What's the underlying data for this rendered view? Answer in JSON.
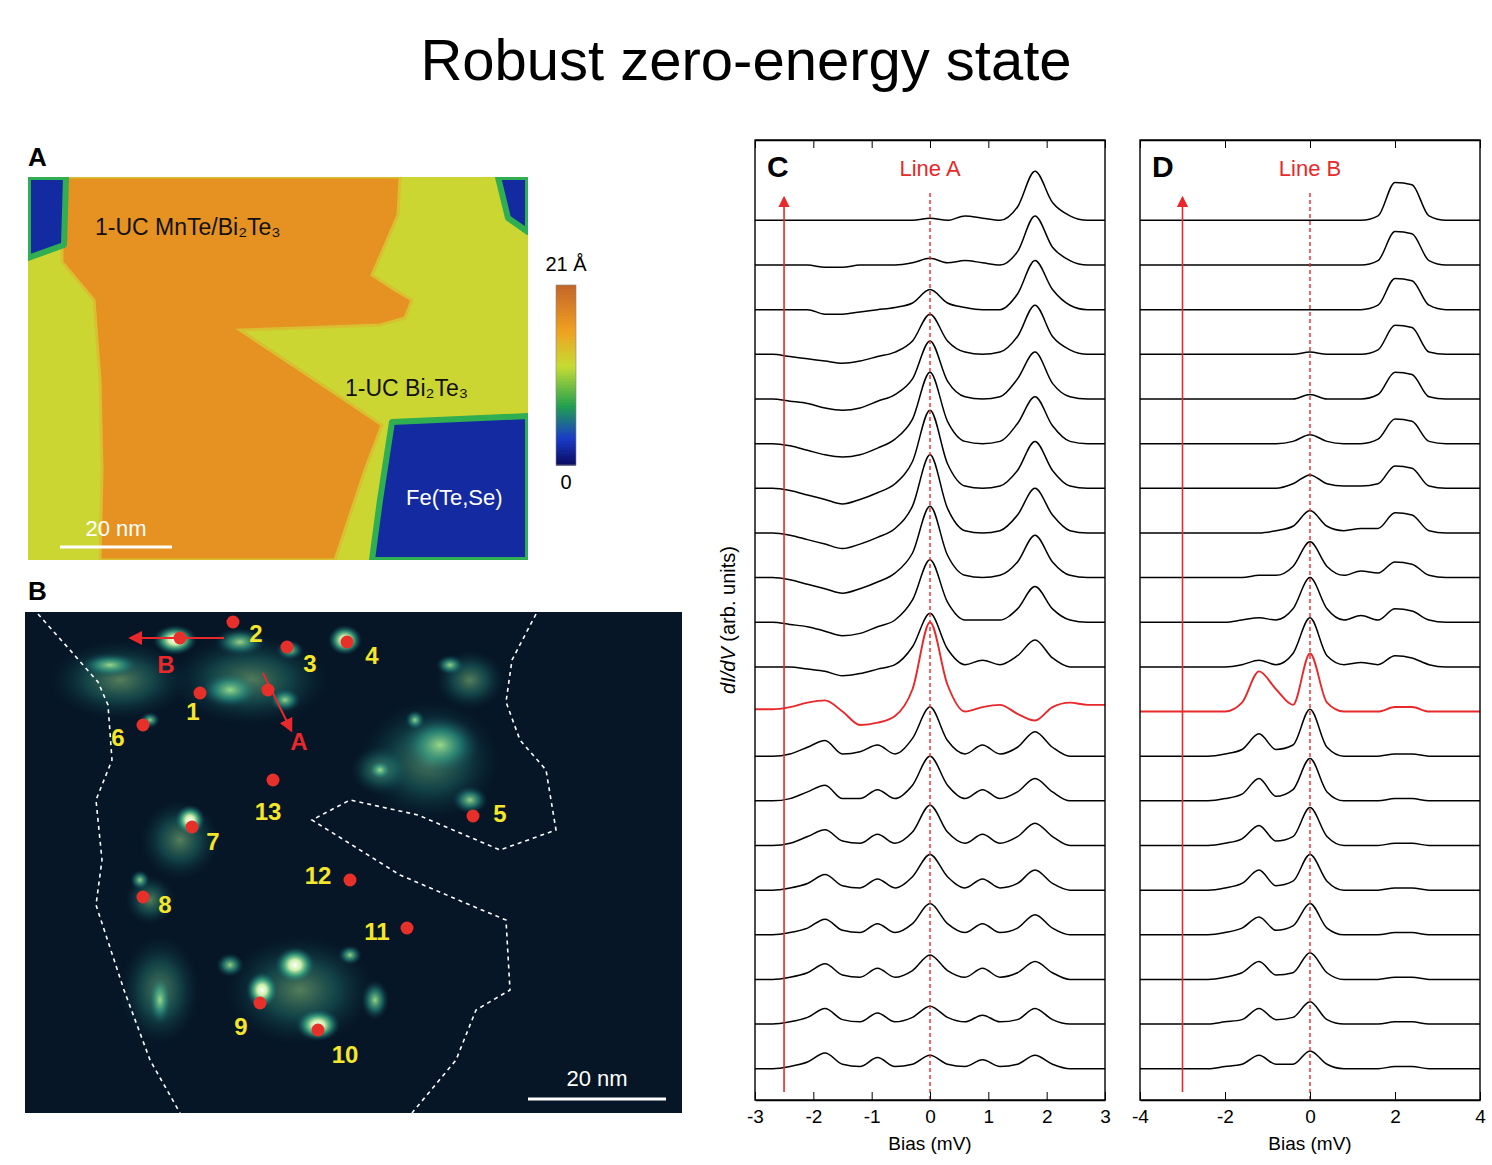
{
  "page_title": "Robust zero-energy state",
  "images": [
    {
      "panel": "A",
      "regions": [
        {
          "label": "1-UC MnTe/Bi₂Te₃",
          "height": 17
        },
        {
          "label": "1-UC Bi₂Te₃",
          "height": 12
        },
        {
          "label": "Fe(Te,Se)",
          "height": 2
        }
      ],
      "colorbar": {
        "range": [
          0,
          21
        ],
        "ticks": [
          {
            "value": 0,
            "label": "0"
          },
          {
            "value": 21,
            "label": "21 Å"
          }
        ]
      },
      "scale_bar": "20 nm"
    },
    {
      "panel": "B",
      "points": [
        "1",
        "2",
        "3",
        "4",
        "5",
        "6",
        "7",
        "8",
        "9",
        "10",
        "11",
        "12",
        "13"
      ],
      "line_cuts": [
        "A",
        "B"
      ],
      "scale_bar": "20 nm"
    }
  ],
  "chart_data": [
    {
      "panel": "C",
      "type": "line",
      "title": "Line A",
      "xlabel": "Bias (mV)",
      "ylabel": "dI/dV (arb. units)",
      "x": [
        -3,
        -2.7,
        -2.4,
        -2.1,
        -1.8,
        -1.5,
        -1.2,
        -0.9,
        -0.6,
        -0.3,
        0,
        0.3,
        0.6,
        0.9,
        1.2,
        1.5,
        1.8,
        2.1,
        2.4,
        2.7,
        3
      ],
      "xlim": [
        -3,
        3
      ],
      "xticks": [
        -3,
        -2,
        -1,
        0,
        1,
        2,
        3
      ],
      "ylim": [
        -0.7,
        20.8
      ],
      "tick_labels": "x",
      "ref_line_x": 0,
      "series": [
        {
          "color": "#000000",
          "values": [
            0,
            0,
            0.05,
            0.15,
            0.35,
            0.1,
            0.05,
            0.25,
            0.05,
            0.1,
            0.3,
            0.1,
            0.05,
            0.2,
            0.05,
            0.1,
            0.3,
            0.1,
            0,
            0,
            0
          ]
        },
        {
          "color": "#000000",
          "values": [
            1,
            1,
            1.05,
            1.15,
            1.35,
            1.1,
            1.05,
            1.25,
            1.05,
            1.15,
            1.4,
            1.15,
            1.05,
            1.2,
            1.05,
            1.1,
            1.35,
            1.1,
            1,
            1,
            1
          ]
        },
        {
          "color": "#000000",
          "values": [
            2,
            2,
            2.05,
            2.15,
            2.35,
            2.1,
            2.05,
            2.25,
            2.05,
            2.2,
            2.55,
            2.2,
            2.05,
            2.25,
            2.05,
            2.15,
            2.4,
            2.15,
            2,
            2,
            2
          ]
        },
        {
          "color": "#000000",
          "values": [
            3,
            3,
            3.05,
            3.15,
            3.35,
            3.1,
            3.05,
            3.25,
            3.05,
            3.25,
            3.7,
            3.25,
            3.05,
            3.25,
            3.05,
            3.15,
            3.45,
            3.15,
            3,
            3,
            3
          ]
        },
        {
          "color": "#000000",
          "values": [
            4,
            4,
            4.05,
            4.15,
            4.35,
            4.1,
            4.05,
            4.25,
            4.05,
            4.3,
            4.8,
            4.3,
            4.05,
            4.25,
            4.05,
            4.15,
            4.45,
            4.15,
            4,
            4,
            4
          ]
        },
        {
          "color": "#000000",
          "values": [
            5,
            5,
            5.05,
            5.2,
            5.35,
            5.1,
            5.05,
            5.25,
            5.05,
            5.3,
            5.9,
            5.3,
            5.05,
            5.25,
            5.05,
            5.2,
            5.5,
            5.2,
            5,
            5,
            5
          ]
        },
        {
          "color": "#000000",
          "values": [
            6,
            6,
            6.05,
            6.2,
            6.35,
            6.05,
            6.05,
            6.25,
            6.05,
            6.35,
            7,
            6.35,
            6.05,
            6.25,
            6.05,
            6.2,
            6.5,
            6.2,
            6,
            6,
            6
          ]
        },
        {
          "color": "#000000",
          "values": [
            7,
            7,
            7.05,
            7.2,
            7.35,
            7.05,
            7.1,
            7.25,
            7.05,
            7.4,
            8.1,
            7.35,
            7.05,
            7.25,
            7.05,
            7.2,
            7.55,
            7.2,
            7,
            7,
            7
          ]
        },
        {
          "color": "#e8282a",
          "values": [
            8.05,
            8.05,
            8.1,
            8.2,
            8.25,
            8,
            7.7,
            7.75,
            7.9,
            8.5,
            10,
            8.6,
            8,
            8.1,
            8.15,
            7.95,
            7.8,
            8.1,
            8.2,
            8.15,
            8.15
          ]
        },
        {
          "color": "#000000",
          "values": [
            9,
            9,
            9,
            8.95,
            8.9,
            8.8,
            8.85,
            8.95,
            9.05,
            9.45,
            10.2,
            9.4,
            9.05,
            9.15,
            9.05,
            9.25,
            9.6,
            9.2,
            9,
            9,
            9
          ]
        },
        {
          "color": "#000000",
          "values": [
            10,
            10,
            9.95,
            9.9,
            9.8,
            9.7,
            9.75,
            9.9,
            10.05,
            10.5,
            11.4,
            10.45,
            10.05,
            10.05,
            10.05,
            10.3,
            10.8,
            10.3,
            10.05,
            10,
            10
          ]
        },
        {
          "color": "#000000",
          "values": [
            11,
            11,
            10.95,
            10.85,
            10.75,
            10.65,
            10.75,
            10.9,
            11.1,
            11.55,
            12.6,
            11.5,
            11.05,
            11,
            11.05,
            11.35,
            11.95,
            11.35,
            11.05,
            11,
            11
          ]
        },
        {
          "color": "#000000",
          "values": [
            12,
            12,
            11.95,
            11.85,
            11.75,
            11.65,
            11.75,
            11.9,
            12.1,
            12.6,
            13.75,
            12.55,
            12.05,
            12,
            12.05,
            12.4,
            13,
            12.4,
            12.05,
            12,
            12
          ]
        },
        {
          "color": "#000000",
          "values": [
            13,
            13,
            12.95,
            12.85,
            12.75,
            12.65,
            12.75,
            12.9,
            13.1,
            13.6,
            14.75,
            13.55,
            13.05,
            13,
            13.05,
            13.4,
            14.05,
            13.4,
            13.05,
            13,
            13
          ]
        },
        {
          "color": "#000000",
          "values": [
            14,
            14,
            13.95,
            13.85,
            13.75,
            13.7,
            13.75,
            13.9,
            14.1,
            14.55,
            15.6,
            14.5,
            14.05,
            14,
            14.05,
            14.45,
            15.05,
            14.4,
            14.05,
            14,
            14
          ]
        },
        {
          "color": "#000000",
          "values": [
            15,
            15,
            14.95,
            14.9,
            14.8,
            14.75,
            14.8,
            14.95,
            15.1,
            15.45,
            16.3,
            15.4,
            15.05,
            15,
            15.05,
            15.45,
            16.05,
            15.35,
            15.05,
            15,
            15
          ]
        },
        {
          "color": "#000000",
          "values": [
            16,
            16,
            15.95,
            15.9,
            15.85,
            15.8,
            15.85,
            15.95,
            16.05,
            16.3,
            16.9,
            16.3,
            16.05,
            16,
            16.05,
            16.4,
            17.1,
            16.4,
            16.1,
            16,
            16
          ]
        },
        {
          "color": "#000000",
          "values": [
            17,
            17,
            17,
            17,
            16.9,
            16.9,
            16.95,
            17,
            17.05,
            17.15,
            17.45,
            17.15,
            17.05,
            17,
            17,
            17.35,
            18.1,
            17.45,
            17.1,
            17,
            17
          ]
        },
        {
          "color": "#000000",
          "values": [
            18,
            18,
            18,
            18,
            17.95,
            17.95,
            18,
            18,
            18,
            18.05,
            18.15,
            18.05,
            18.1,
            18.05,
            18,
            18.3,
            19.1,
            18.4,
            18.1,
            18,
            18
          ]
        },
        {
          "color": "#000000",
          "values": [
            19,
            19,
            19,
            19,
            19,
            19,
            19,
            19,
            19,
            19,
            19.05,
            19,
            19.1,
            19.05,
            19,
            19.3,
            20.1,
            19.4,
            19.1,
            19,
            19
          ]
        }
      ]
    },
    {
      "panel": "D",
      "type": "line",
      "title": "Line B",
      "xlabel": "Bias (mV)",
      "x": [
        -4,
        -3.6,
        -3.2,
        -2.8,
        -2.4,
        -2,
        -1.6,
        -1.2,
        -0.8,
        -0.4,
        0,
        0.4,
        0.8,
        1.2,
        1.6,
        2,
        2.4,
        2.8,
        3.2,
        3.6,
        4
      ],
      "xlim": [
        -4,
        4
      ],
      "xticks": [
        -4,
        -2,
        0,
        2,
        4
      ],
      "ylim": [
        -0.7,
        20.8
      ],
      "tick_labels": "x",
      "ref_line_x": 0,
      "series": [
        {
          "color": "#000000",
          "values": [
            0,
            0,
            0,
            0,
            0,
            0.05,
            0.1,
            0.3,
            0.1,
            0.1,
            0.4,
            0.1,
            0,
            0,
            0,
            0.05,
            0.05,
            0,
            0,
            0,
            0
          ]
        },
        {
          "color": "#000000",
          "values": [
            1,
            1,
            1,
            1,
            1,
            1.05,
            1.1,
            1.35,
            1.1,
            1.15,
            1.5,
            1.1,
            1,
            1,
            1,
            1.05,
            1.05,
            1,
            1,
            1,
            1
          ]
        },
        {
          "color": "#000000",
          "values": [
            2,
            2,
            2,
            2,
            2,
            2.05,
            2.15,
            2.4,
            2.1,
            2.15,
            2.6,
            2.15,
            2,
            2,
            2,
            2.05,
            2.05,
            2,
            2,
            2,
            2
          ]
        },
        {
          "color": "#000000",
          "values": [
            3,
            3,
            3,
            3,
            3,
            3.05,
            3.15,
            3.4,
            3.1,
            3.2,
            3.7,
            3.15,
            3,
            3,
            3,
            3.05,
            3.05,
            3,
            3,
            3,
            3
          ]
        },
        {
          "color": "#000000",
          "values": [
            4,
            4,
            4,
            4,
            4,
            4.05,
            4.15,
            4.45,
            4.1,
            4.2,
            4.8,
            4.2,
            4,
            4,
            4,
            4.05,
            4.05,
            4,
            4,
            4,
            4
          ]
        },
        {
          "color": "#000000",
          "values": [
            5,
            5,
            5,
            5,
            5,
            5.05,
            5.15,
            5.45,
            5.1,
            5.2,
            5.85,
            5.2,
            5,
            5,
            5,
            5.05,
            5.05,
            5,
            5,
            5,
            5
          ]
        },
        {
          "color": "#000000",
          "values": [
            6,
            6,
            6,
            6,
            6,
            6.05,
            6.15,
            6.5,
            6.1,
            6.25,
            6.95,
            6.2,
            6,
            6,
            6,
            6.05,
            6.05,
            6,
            6,
            6,
            6
          ]
        },
        {
          "color": "#000000",
          "values": [
            7,
            7,
            7,
            7,
            7,
            7.05,
            7.15,
            7.5,
            7.15,
            7.25,
            8.05,
            7.2,
            7,
            7,
            7,
            7.05,
            7.05,
            7,
            7,
            7,
            7
          ]
        },
        {
          "color": "#e8282a",
          "values": [
            8,
            8,
            8,
            8,
            8,
            8,
            8.2,
            8.9,
            8.5,
            8.15,
            9.3,
            8.2,
            8,
            8,
            8,
            8.1,
            8.1,
            8,
            8,
            8,
            8
          ]
        },
        {
          "color": "#000000",
          "values": [
            9,
            9,
            9,
            9,
            9,
            9,
            9.05,
            9.15,
            9.05,
            9.3,
            10.1,
            9.25,
            9.05,
            9.1,
            9.05,
            9.25,
            9.2,
            9.05,
            9,
            9,
            9
          ]
        },
        {
          "color": "#000000",
          "values": [
            10,
            10,
            10,
            10,
            10,
            10,
            10.05,
            10.1,
            10.05,
            10.3,
            11,
            10.3,
            10.05,
            10.15,
            10.05,
            10.3,
            10.25,
            10.05,
            10,
            10,
            10
          ]
        },
        {
          "color": "#000000",
          "values": [
            11,
            11,
            11,
            11,
            11,
            11,
            11,
            11.05,
            11.05,
            11.25,
            11.8,
            11.25,
            11.05,
            11.15,
            11.1,
            11.35,
            11.3,
            11.05,
            11,
            11,
            11
          ]
        },
        {
          "color": "#000000",
          "values": [
            12,
            12,
            12,
            12,
            12,
            12,
            12,
            12,
            12.05,
            12.15,
            12.5,
            12.15,
            12.05,
            12.1,
            12.1,
            12.45,
            12.4,
            12.05,
            12,
            12,
            12
          ]
        },
        {
          "color": "#000000",
          "values": [
            13,
            13,
            13,
            13,
            13,
            13,
            13,
            13,
            13,
            13.1,
            13.3,
            13.1,
            13.05,
            13.05,
            13.1,
            13.5,
            13.45,
            13.05,
            13,
            13,
            13
          ]
        },
        {
          "color": "#000000",
          "values": [
            14,
            14,
            14,
            14,
            14,
            14,
            14,
            14,
            14,
            14.05,
            14.2,
            14.05,
            14,
            14,
            14.1,
            14.55,
            14.5,
            14.05,
            14,
            14,
            14
          ]
        },
        {
          "color": "#000000",
          "values": [
            15,
            15,
            15,
            15,
            15,
            15,
            15,
            15,
            15,
            15,
            15.1,
            15,
            15,
            15,
            15.1,
            15.6,
            15.55,
            15.05,
            15,
            15,
            15
          ]
        },
        {
          "color": "#000000",
          "values": [
            16,
            16,
            16,
            16,
            16,
            16,
            16,
            16,
            16,
            16,
            16.05,
            16,
            16,
            16,
            16.1,
            16.65,
            16.6,
            16.05,
            16,
            16,
            16
          ]
        },
        {
          "color": "#000000",
          "values": [
            17,
            17,
            17,
            17,
            17,
            17,
            17,
            17,
            17,
            17,
            17,
            17,
            17,
            17,
            17.1,
            17.7,
            17.65,
            17.1,
            17,
            17,
            17
          ]
        },
        {
          "color": "#000000",
          "values": [
            18,
            18,
            18,
            18,
            18,
            18,
            18,
            18,
            18,
            18,
            18,
            18,
            18,
            18,
            18.1,
            18.75,
            18.7,
            18.1,
            18,
            18,
            18
          ]
        },
        {
          "color": "#000000",
          "values": [
            19,
            19,
            19,
            19,
            19,
            19,
            19,
            19,
            19,
            19,
            19,
            19,
            19,
            19,
            19.1,
            19.85,
            19.8,
            19.1,
            19,
            19,
            19
          ]
        }
      ]
    }
  ]
}
